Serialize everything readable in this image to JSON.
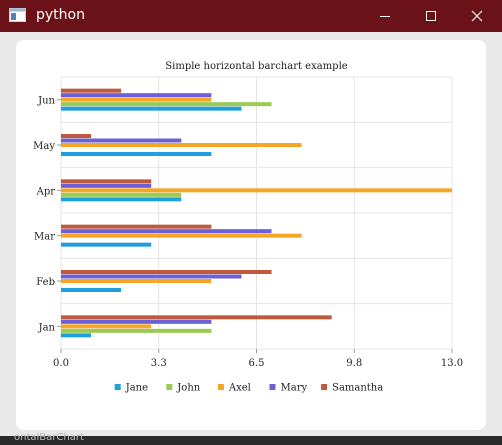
{
  "window": {
    "title": "python",
    "titlebar_color": "#6b1218"
  },
  "taskbar": {
    "partial_label": "ontalBarChart",
    "close_glyph": "×"
  },
  "chart_data": {
    "type": "bar",
    "orientation": "horizontal",
    "title": "Simple horizontal barchart example",
    "categories": [
      "Jan",
      "Feb",
      "Mar",
      "Apr",
      "May",
      "Jun"
    ],
    "xlim": [
      0,
      13
    ],
    "xticks": [
      "0.0",
      "3.3",
      "6.5",
      "9.8",
      "13.0"
    ],
    "grid": true,
    "legend_position": "bottom",
    "series": [
      {
        "name": "Jane",
        "color": "#209fdf",
        "values": [
          1,
          2,
          3,
          4,
          5,
          6
        ]
      },
      {
        "name": "John",
        "color": "#99ca53",
        "values": [
          5,
          0,
          0,
          4,
          0,
          7
        ]
      },
      {
        "name": "Axel",
        "color": "#f6a625",
        "values": [
          3,
          5,
          8,
          13,
          8,
          5
        ]
      },
      {
        "name": "Mary",
        "color": "#6d5fd5",
        "values": [
          5,
          6,
          7,
          3,
          4,
          5
        ]
      },
      {
        "name": "Samantha",
        "color": "#bf593e",
        "values": [
          9,
          7,
          5,
          3,
          1,
          2
        ]
      }
    ]
  }
}
